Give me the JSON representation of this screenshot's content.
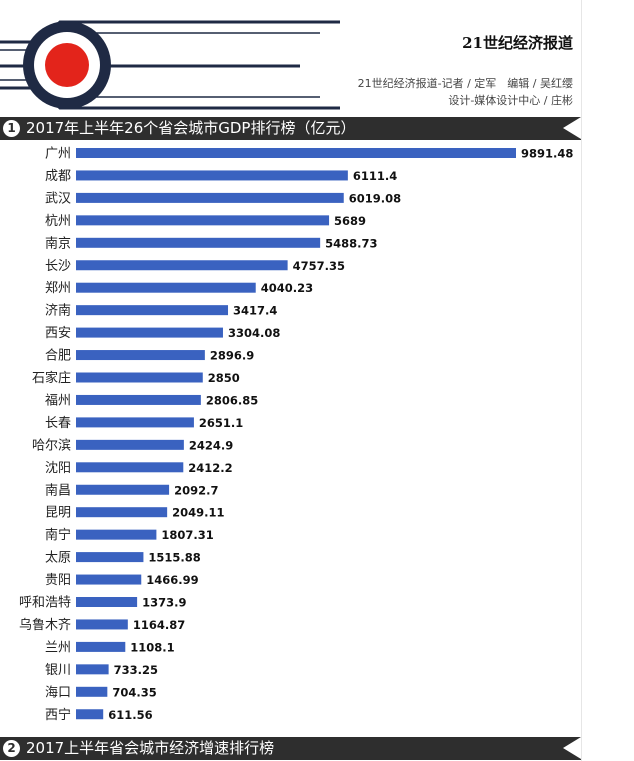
{
  "header": {
    "brand": "21世纪经济报道",
    "credit_line_1": "21世纪经济报道-记者 / 定军　编辑 / 吴红缨",
    "credit_line_2": "设计-媒体设计中心 / 庄彬"
  },
  "section_1": {
    "number": "1",
    "title": "2017年上半年26个省会城市GDP排行榜（亿元）"
  },
  "section_2": {
    "number": "2",
    "title": "2017上半年省会城市经济增速排行榜"
  },
  "colors": {
    "bar": "#3a62c0",
    "section_bar": "#2e2e2e",
    "logo_red": "#e3241b",
    "logo_navy": "#1f2a44"
  },
  "chart_data": {
    "type": "bar",
    "orientation": "horizontal",
    "title": "2017年上半年26个省会城市GDP排行榜（亿元）",
    "categories": [
      "广州",
      "成都",
      "武汉",
      "杭州",
      "南京",
      "长沙",
      "郑州",
      "济南",
      "西安",
      "合肥",
      "石家庄",
      "福州",
      "长春",
      "哈尔滨",
      "沈阳",
      "南昌",
      "昆明",
      "南宁",
      "太原",
      "贵阳",
      "呼和浩特",
      "乌鲁木齐",
      "兰州",
      "银川",
      "海口",
      "西宁"
    ],
    "values": [
      9891.48,
      6111.4,
      6019.08,
      5689,
      5488.73,
      4757.35,
      4040.23,
      3417.4,
      3304.08,
      2896.9,
      2850,
      2806.85,
      2651.1,
      2424.9,
      2412.2,
      2092.7,
      2049.11,
      1807.31,
      1515.88,
      1466.99,
      1373.9,
      1164.87,
      1108.1,
      733.25,
      704.35,
      611.56
    ],
    "value_labels": [
      "9891.48",
      "6111.4",
      "6019.08",
      "5689",
      "5488.73",
      "4757.35",
      "4040.23",
      "3417.4",
      "3304.08",
      "2896.9",
      "2850",
      "2806.85",
      "2651.1",
      "2424.9",
      "2412.2",
      "2092.7",
      "2049.11",
      "1807.31",
      "1515.88",
      "1466.99",
      "1373.9",
      "1164.87",
      "1108.1",
      "733.25",
      "704.35",
      "611.56"
    ],
    "grid": false,
    "legend": "none"
  }
}
